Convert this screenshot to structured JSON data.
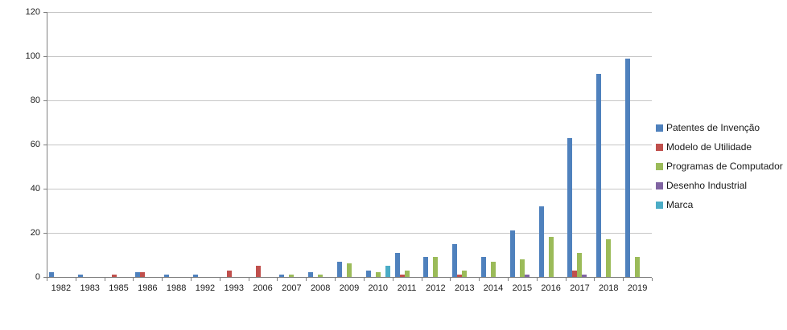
{
  "chart_data": {
    "type": "bar",
    "title": "",
    "xlabel": "",
    "ylabel": "",
    "grid": true,
    "legend_position": "right",
    "y_axis": {
      "min": 0,
      "max": 120,
      "step": 20,
      "ticks": [
        0,
        20,
        40,
        60,
        80,
        100,
        120
      ]
    },
    "categories": [
      "1982",
      "1983",
      "1985",
      "1986",
      "1988",
      "1992",
      "1993",
      "2006",
      "2007",
      "2008",
      "2009",
      "2010",
      "2011",
      "2012",
      "2013",
      "2014",
      "2015",
      "2016",
      "2017",
      "2018",
      "2019"
    ],
    "series": [
      {
        "name": "Patentes de Invenção",
        "color": "#4F81BD",
        "values": [
          2,
          1,
          0,
          2,
          1,
          1,
          0,
          0,
          1,
          2,
          7,
          3,
          11,
          9,
          15,
          9,
          21,
          32,
          63,
          92,
          99
        ]
      },
      {
        "name": "Modelo de Utilidade",
        "color": "#C0504D",
        "values": [
          0,
          0,
          1,
          2,
          0,
          0,
          3,
          5,
          0,
          0,
          0,
          0,
          1,
          0,
          1,
          0,
          0,
          0,
          3,
          0,
          0
        ]
      },
      {
        "name": "Programas de Computador",
        "color": "#9BBB59",
        "values": [
          0,
          0,
          0,
          0,
          0,
          0,
          0,
          0,
          1,
          1,
          6,
          2,
          3,
          9,
          3,
          7,
          8,
          18,
          11,
          17,
          9
        ]
      },
      {
        "name": "Desenho Industrial",
        "color": "#8064A2",
        "values": [
          0,
          0,
          0,
          0,
          0,
          0,
          0,
          0,
          0,
          0,
          0,
          0,
          0,
          0,
          0,
          0,
          1,
          0,
          1,
          0,
          0
        ]
      },
      {
        "name": "Marca",
        "color": "#4BACC6",
        "values": [
          0,
          0,
          0,
          0,
          0,
          0,
          0,
          0,
          0,
          0,
          0,
          5,
          0,
          0,
          0,
          0,
          0,
          0,
          0,
          0,
          0
        ]
      }
    ]
  },
  "colors": {
    "background": "#FFFFFF",
    "gridline": "#C6C6C6",
    "axis": "#808080",
    "text": "#1A1A1A"
  }
}
